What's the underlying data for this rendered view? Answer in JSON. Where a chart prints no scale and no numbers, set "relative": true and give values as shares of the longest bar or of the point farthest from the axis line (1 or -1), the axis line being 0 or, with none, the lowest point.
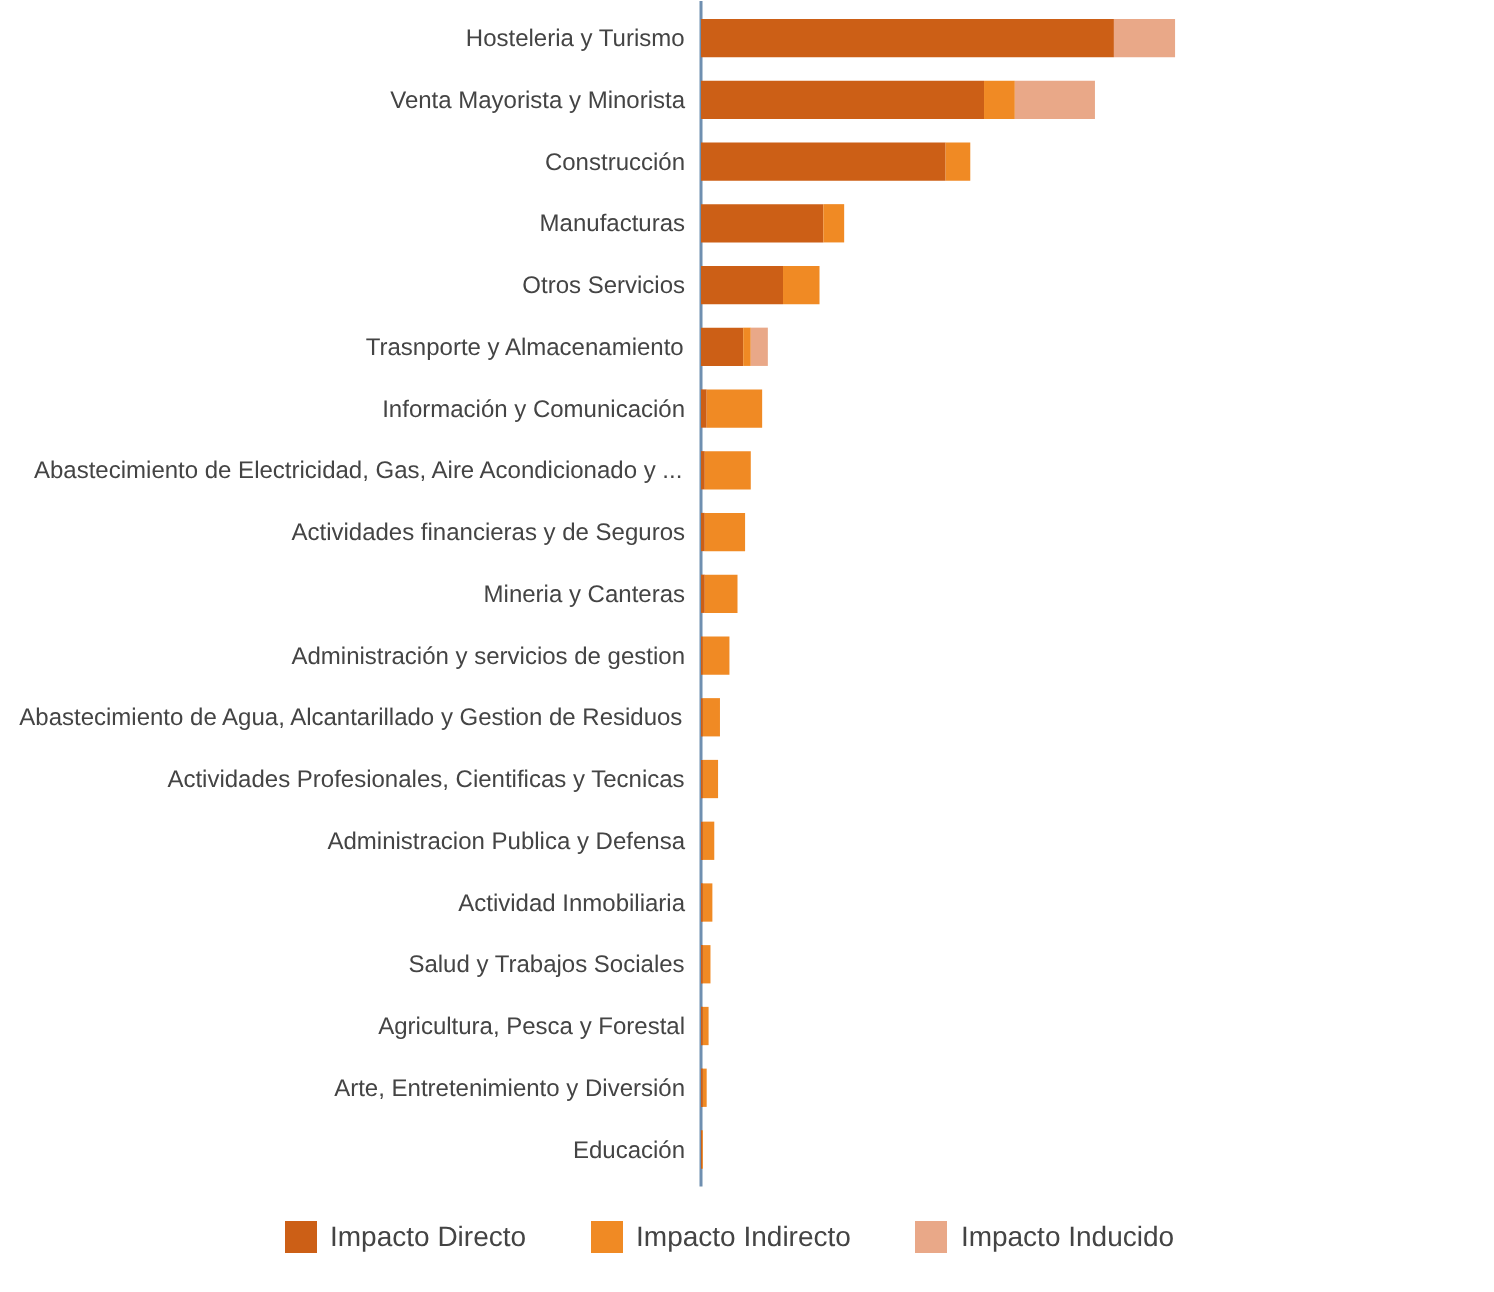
{
  "chart_data": {
    "type": "bar",
    "orientation": "horizontal",
    "stacked": true,
    "relative": true,
    "legend": "bottom",
    "categories": [
      "Hosteleria y Turismo",
      "Venta Mayorista y Minorista",
      "Construcción",
      "Manufacturas",
      "Otros Servicios",
      "Trasnporte y Almacenamiento",
      "Información y Comunicación",
      "Abastecimiento de Electricidad, Gas, Aire Acondicionado y ...",
      "Actividades financieras y de Seguros",
      "Mineria y Canteras",
      "Administración y servicios de gestion",
      "Abastecimiento de Agua, Alcantarillado y Gestion de Residuos",
      "Actividades Profesionales, Cientificas y Tecnicas",
      "Administracion Publica y Defensa",
      "Actividad Inmobiliaria",
      "Salud y Trabajos Sociales",
      "Agricultura, Pesca y Forestal",
      "Arte, Entretenimiento y Diversión",
      "Educación"
    ],
    "series": [
      {
        "name": "Impacto Directo",
        "color": "#cc5f16",
        "values": [
          0.871,
          0.597,
          0.516,
          0.258,
          0.173,
          0.089,
          0.012,
          0.008,
          0.008,
          0.008,
          0.004,
          0.004,
          0.004,
          0.004,
          0.004,
          0.004,
          0.004,
          0.004,
          0.002
        ]
      },
      {
        "name": "Impacto Indirecto",
        "color": "#f08a24",
        "values": [
          0,
          0.065,
          0.052,
          0.044,
          0.077,
          0.016,
          0.117,
          0.097,
          0.085,
          0.069,
          0.056,
          0.036,
          0.032,
          0.024,
          0.02,
          0.016,
          0.012,
          0.008,
          0.002
        ]
      },
      {
        "name": "Impacto Inducido",
        "color": "#e9a888",
        "values": [
          0.129,
          0.169,
          0,
          0,
          0,
          0.036,
          0,
          0,
          0,
          0,
          0,
          0,
          0,
          0,
          0,
          0,
          0,
          0,
          0
        ]
      }
    ]
  }
}
